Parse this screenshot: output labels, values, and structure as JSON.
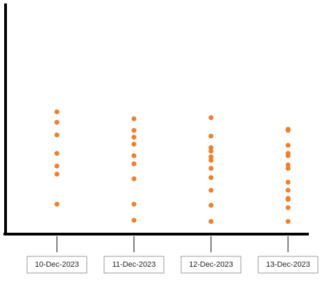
{
  "chart_data": {
    "type": "strip",
    "categories": [
      "10-Dec-2023",
      "11-Dec-2023",
      "12-Dec-2023",
      "13-Dec-2023"
    ],
    "values": [
      [
        53,
        48.5,
        43,
        35,
        29.5,
        26,
        13
      ],
      [
        50,
        45,
        42,
        39,
        34,
        30.5,
        24,
        13,
        6
      ],
      [
        50.5,
        42.5,
        37.5,
        36,
        33.5,
        32,
        28.5,
        24.5,
        19,
        12.5,
        5.5
      ],
      [
        45.5,
        45,
        38.5,
        35,
        34,
        30,
        28.5,
        22.5,
        19,
        15.5,
        15,
        11.5,
        5.5
      ]
    ],
    "color": "#f07f2d",
    "ylim": [
      0,
      100
    ]
  }
}
